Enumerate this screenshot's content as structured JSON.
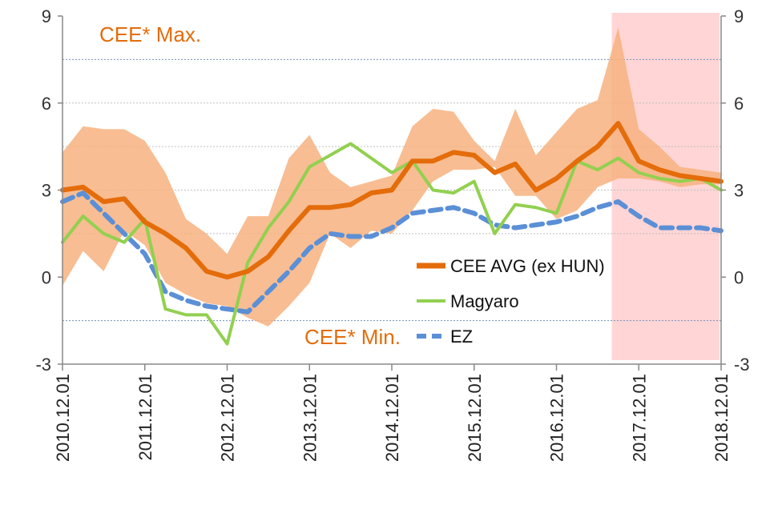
{
  "chart_data": {
    "type": "line",
    "x_labels": [
      "2010.12.01",
      "2011.12.01",
      "2012.12.01",
      "2013.12.01",
      "2014.12.01",
      "2015.12.01",
      "2016.12.01",
      "2017.12.01",
      "2018.12.01"
    ],
    "y_ticks": [
      9,
      6,
      3,
      0,
      -3
    ],
    "ylim": [
      -3,
      9
    ],
    "xlim": [
      0,
      96
    ],
    "grid": "horizontal dotted",
    "colors": {
      "band": "#f7b27f",
      "avg": "#e46c0a",
      "magyaro": "#92d050",
      "ez": "#5b8fd6",
      "forecast": "#ffd5d5",
      "ref_line": "#6f8fbf"
    },
    "reference_lines": [
      7.5,
      -1.5
    ],
    "forecast_region_start_x": 81,
    "band": {
      "name_max": "CEE* Max.",
      "name_min": "CEE* Min.",
      "x": [
        0,
        3,
        6,
        9,
        12,
        15,
        18,
        21,
        24,
        27,
        30,
        33,
        36,
        39,
        42,
        45,
        48,
        51,
        54,
        57,
        60,
        63,
        66,
        69,
        72,
        75,
        78,
        81,
        84,
        87,
        90,
        93,
        96
      ],
      "max": [
        4.3,
        5.2,
        5.1,
        5.1,
        4.7,
        3.6,
        2.0,
        1.5,
        0.8,
        2.1,
        2.1,
        4.1,
        4.9,
        3.6,
        3.1,
        3.3,
        3.5,
        5.2,
        5.8,
        5.7,
        4.7,
        4.0,
        5.8,
        4.2,
        5.0,
        5.8,
        6.1,
        8.6,
        5.1,
        4.5,
        3.8,
        3.7,
        3.6
      ],
      "min": [
        -0.3,
        0.9,
        0.2,
        1.6,
        1.1,
        -0.2,
        -0.6,
        -0.9,
        -1.0,
        -1.4,
        -1.7,
        -1.0,
        -0.2,
        1.5,
        1.0,
        1.6,
        1.5,
        2.3,
        3.3,
        3.7,
        3.7,
        3.8,
        2.8,
        2.8,
        2.0,
        2.3,
        3.1,
        3.4,
        3.4,
        3.3,
        3.1,
        3.2,
        3.2
      ]
    },
    "series": [
      {
        "name": "CEE AVG (ex HUN)",
        "x": [
          0,
          3,
          6,
          9,
          12,
          15,
          18,
          21,
          24,
          27,
          30,
          33,
          36,
          39,
          42,
          45,
          48,
          51,
          54,
          57,
          60,
          63,
          66,
          69,
          72,
          75,
          78,
          81,
          84,
          87,
          90,
          93,
          96
        ],
        "values": [
          3.0,
          3.1,
          2.6,
          2.7,
          1.9,
          1.5,
          1.0,
          0.2,
          0.0,
          0.2,
          0.7,
          1.6,
          2.4,
          2.4,
          2.5,
          2.9,
          3.0,
          4.0,
          4.0,
          4.3,
          4.2,
          3.6,
          3.9,
          3.0,
          3.4,
          4.0,
          4.5,
          5.3,
          4.0,
          3.7,
          3.5,
          3.4,
          3.3
        ]
      },
      {
        "name": "Magyaro",
        "x": [
          0,
          3,
          6,
          9,
          12,
          15,
          18,
          21,
          24,
          27,
          30,
          33,
          36,
          39,
          42,
          45,
          48,
          51,
          54,
          57,
          60,
          63,
          66,
          69,
          72,
          75,
          78,
          81,
          84,
          87,
          90,
          93,
          96
        ],
        "values": [
          1.2,
          2.1,
          1.5,
          1.2,
          2.0,
          -1.1,
          -1.3,
          -1.3,
          -2.3,
          0.5,
          1.7,
          2.6,
          3.8,
          4.2,
          4.6,
          4.1,
          3.6,
          4.0,
          3.0,
          2.9,
          3.3,
          1.5,
          2.5,
          2.4,
          2.2,
          4.0,
          3.7,
          4.1,
          3.6,
          3.4,
          3.3,
          3.4,
          3.0
        ]
      },
      {
        "name": "EZ",
        "x": [
          0,
          3,
          6,
          9,
          12,
          15,
          18,
          21,
          24,
          27,
          30,
          33,
          36,
          39,
          42,
          45,
          48,
          51,
          54,
          57,
          60,
          63,
          66,
          69,
          72,
          75,
          78,
          81,
          84,
          87,
          90,
          93,
          96
        ],
        "values": [
          2.6,
          2.9,
          2.2,
          1.5,
          0.8,
          -0.5,
          -0.8,
          -1.0,
          -1.1,
          -1.2,
          -0.5,
          0.2,
          1.0,
          1.5,
          1.4,
          1.4,
          1.7,
          2.2,
          2.3,
          2.4,
          2.2,
          1.8,
          1.7,
          1.8,
          1.9,
          2.1,
          2.4,
          2.6,
          2.1,
          1.7,
          1.7,
          1.7,
          1.6
        ]
      }
    ],
    "legend_position": "center-right"
  }
}
